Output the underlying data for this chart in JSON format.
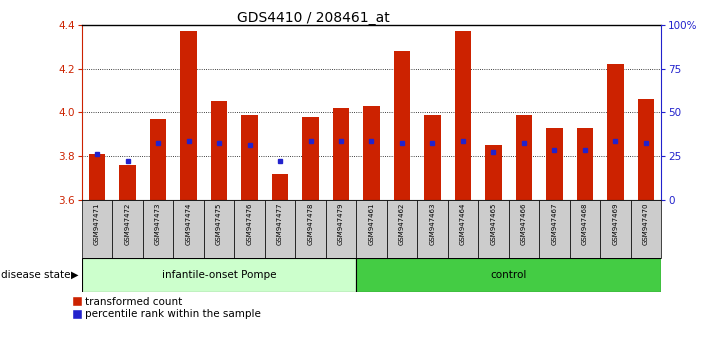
{
  "title": "GDS4410 / 208461_at",
  "samples": [
    "GSM947471",
    "GSM947472",
    "GSM947473",
    "GSM947474",
    "GSM947475",
    "GSM947476",
    "GSM947477",
    "GSM947478",
    "GSM947479",
    "GSM947461",
    "GSM947462",
    "GSM947463",
    "GSM947464",
    "GSM947465",
    "GSM947466",
    "GSM947467",
    "GSM947468",
    "GSM947469",
    "GSM947470"
  ],
  "bar_values": [
    3.81,
    3.76,
    3.97,
    4.37,
    4.05,
    3.99,
    3.72,
    3.98,
    4.02,
    4.03,
    4.28,
    3.99,
    4.37,
    3.85,
    3.99,
    3.93,
    3.93,
    4.22,
    4.06
  ],
  "blue_values": [
    3.81,
    3.78,
    3.86,
    3.87,
    3.86,
    3.85,
    3.78,
    3.87,
    3.87,
    3.87,
    3.86,
    3.86,
    3.87,
    3.82,
    3.86,
    3.83,
    3.83,
    3.87,
    3.86
  ],
  "group1_count": 9,
  "group2_count": 10,
  "group1_label": "infantile-onset Pompe",
  "group2_label": "control",
  "disease_state_label": "disease state",
  "ymin": 3.6,
  "ymax": 4.4,
  "yticks": [
    3.6,
    3.8,
    4.0,
    4.2,
    4.4
  ],
  "right_yticks": [
    0,
    25,
    50,
    75,
    100
  ],
  "right_ytick_labels": [
    "0",
    "25",
    "50",
    "75",
    "100%"
  ],
  "bar_color": "#cc2200",
  "blue_color": "#2222cc",
  "group1_bg": "#ccffcc",
  "group2_bg": "#44cc44",
  "tick_label_bg": "#cccccc",
  "legend_red_label": "transformed count",
  "legend_blue_label": "percentile rank within the sample",
  "bar_width": 0.55,
  "grid_lines": [
    3.8,
    4.0,
    4.2
  ]
}
